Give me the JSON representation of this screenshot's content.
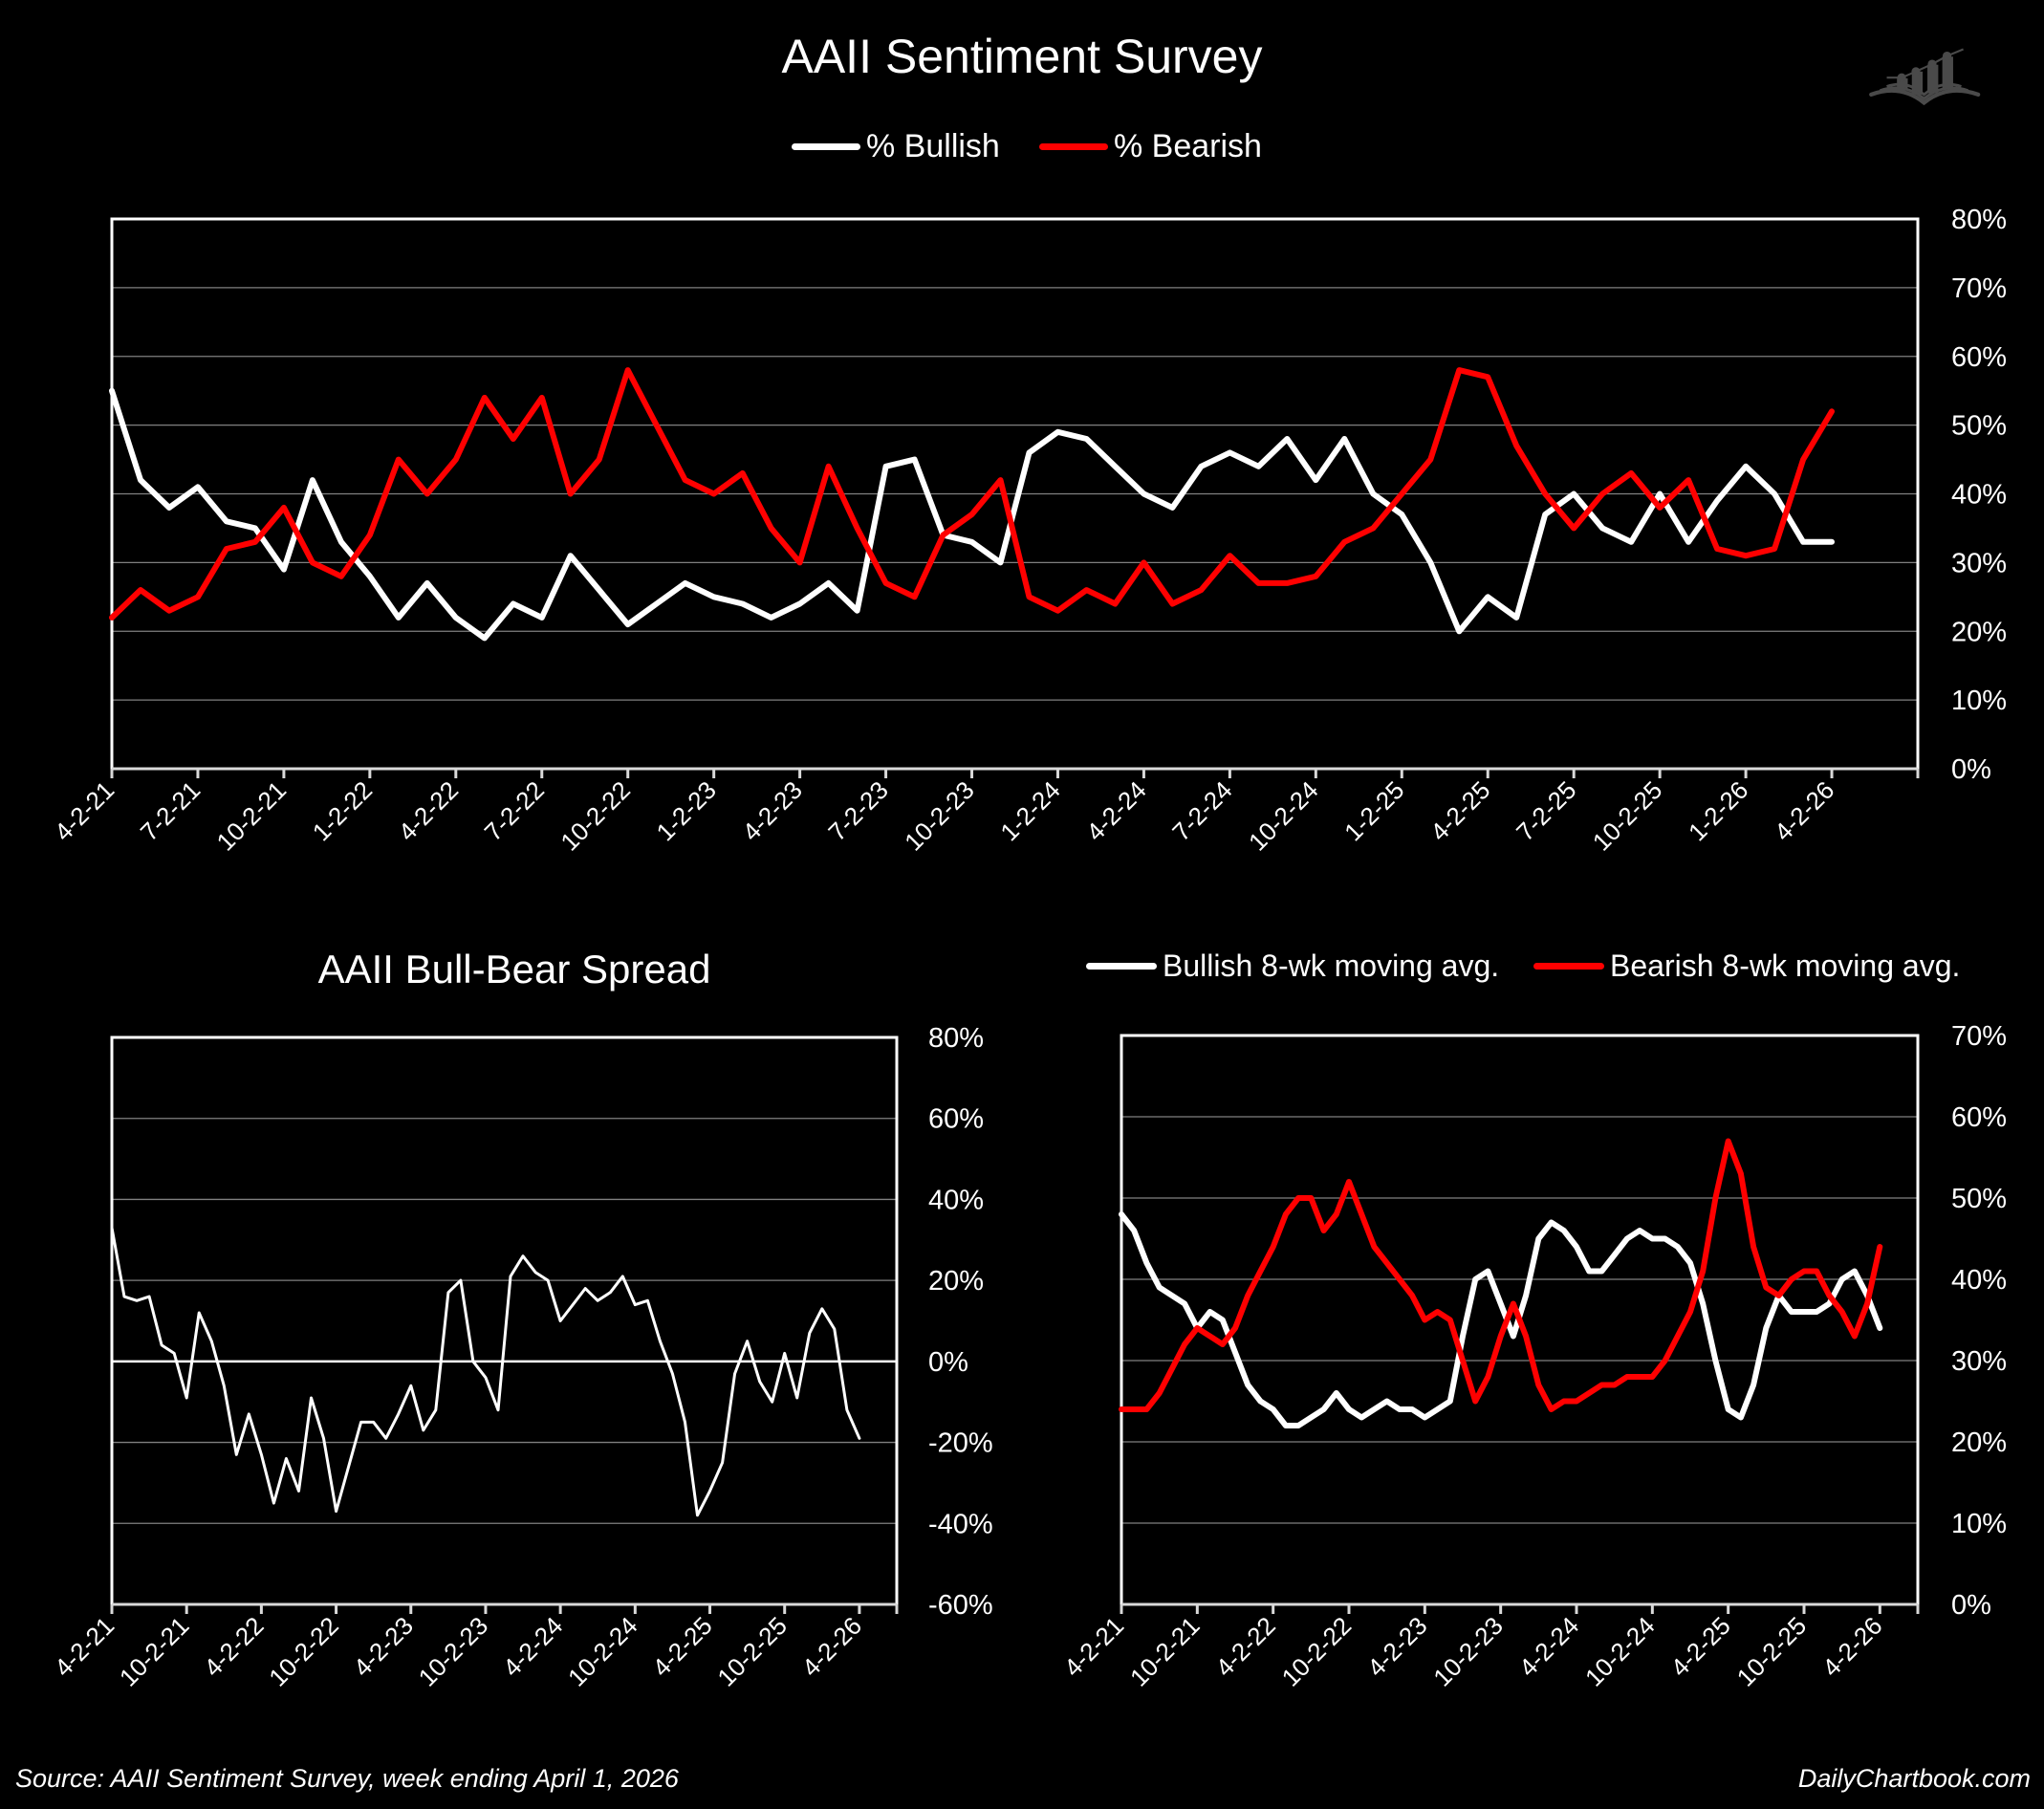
{
  "colors": {
    "background": "#000000",
    "bullish": "#ffffff",
    "bearish": "#ff0000",
    "grid": "#808080",
    "logo": "#4a4a4a"
  },
  "logo": {
    "icon": "book-with-rising-bar-chart-icon"
  },
  "footer": {
    "source": "Source: AAII Sentiment Survey, week ending April 1, 2026",
    "brand": "DailyChartbook.com"
  },
  "chart_data": [
    {
      "type": "line",
      "title": "AAII Sentiment Survey",
      "legend_position": "top",
      "grid": true,
      "y_axis_side": "right",
      "ylim": [
        0,
        80
      ],
      "y_tick_labels": [
        "0%",
        "10%",
        "20%",
        "30%",
        "40%",
        "50%",
        "60%",
        "70%",
        "80%"
      ],
      "x_tick_labels": [
        "4-2-21",
        "7-2-21",
        "10-2-21",
        "1-2-22",
        "4-2-22",
        "7-2-22",
        "10-2-22",
        "1-2-23",
        "4-2-23",
        "7-2-23",
        "10-2-23",
        "1-2-24",
        "4-2-24",
        "7-2-24",
        "10-2-24",
        "1-2-25",
        "4-2-25",
        "7-2-25",
        "10-2-25",
        "1-2-26",
        "4-2-26"
      ],
      "x": [
        "2021-04",
        "2021-05",
        "2021-06",
        "2021-07",
        "2021-08",
        "2021-09",
        "2021-10",
        "2021-11",
        "2021-12",
        "2022-01",
        "2022-02",
        "2022-03",
        "2022-04",
        "2022-05",
        "2022-06",
        "2022-07",
        "2022-08",
        "2022-09",
        "2022-10",
        "2022-11",
        "2022-12",
        "2023-01",
        "2023-02",
        "2023-03",
        "2023-04",
        "2023-05",
        "2023-06",
        "2023-07",
        "2023-08",
        "2023-09",
        "2023-10",
        "2023-11",
        "2023-12",
        "2024-01",
        "2024-02",
        "2024-03",
        "2024-04",
        "2024-05",
        "2024-06",
        "2024-07",
        "2024-08",
        "2024-09",
        "2024-10",
        "2024-11",
        "2024-12",
        "2025-01",
        "2025-02",
        "2025-03",
        "2025-04",
        "2025-05",
        "2025-06",
        "2025-07",
        "2025-08",
        "2025-09",
        "2025-10",
        "2025-11",
        "2025-12",
        "2026-01",
        "2026-02",
        "2026-03",
        "2026-04"
      ],
      "series": [
        {
          "name": "% Bullish",
          "color": "#ffffff",
          "values": [
            55,
            42,
            38,
            41,
            36,
            35,
            29,
            42,
            33,
            28,
            22,
            27,
            22,
            19,
            24,
            22,
            31,
            26,
            21,
            24,
            27,
            25,
            24,
            22,
            24,
            27,
            23,
            44,
            45,
            34,
            33,
            30,
            46,
            49,
            48,
            44,
            40,
            38,
            44,
            46,
            44,
            48,
            42,
            48,
            40,
            37,
            30,
            20,
            25,
            22,
            37,
            40,
            35,
            33,
            40,
            33,
            39,
            44,
            40,
            33,
            33
          ]
        },
        {
          "name": "% Bearish",
          "color": "#ff0000",
          "values": [
            22,
            26,
            23,
            25,
            32,
            33,
            38,
            30,
            28,
            34,
            45,
            40,
            45,
            54,
            48,
            54,
            40,
            45,
            58,
            50,
            42,
            40,
            43,
            35,
            30,
            44,
            35,
            27,
            25,
            34,
            37,
            42,
            25,
            23,
            26,
            24,
            30,
            24,
            26,
            31,
            27,
            27,
            28,
            33,
            35,
            40,
            45,
            58,
            57,
            47,
            40,
            35,
            40,
            43,
            38,
            42,
            32,
            31,
            32,
            45,
            52
          ]
        }
      ]
    },
    {
      "type": "line",
      "title": "AAII Bull-Bear Spread",
      "grid": true,
      "y_axis_side": "right",
      "ylim": [
        -60,
        80
      ],
      "y_tick_labels": [
        "-60%",
        "-40%",
        "-20%",
        "0%",
        "20%",
        "40%",
        "60%",
        "80%"
      ],
      "x_tick_labels": [
        "4-2-21",
        "10-2-21",
        "4-2-22",
        "10-2-22",
        "4-2-23",
        "10-2-23",
        "4-2-24",
        "10-2-24",
        "4-2-25",
        "10-2-25",
        "4-2-26"
      ],
      "x": [
        "2021-04",
        "2021-05",
        "2021-06",
        "2021-07",
        "2021-08",
        "2021-09",
        "2021-10",
        "2021-11",
        "2021-12",
        "2022-01",
        "2022-02",
        "2022-03",
        "2022-04",
        "2022-05",
        "2022-06",
        "2022-07",
        "2022-08",
        "2022-09",
        "2022-10",
        "2022-11",
        "2022-12",
        "2023-01",
        "2023-02",
        "2023-03",
        "2023-04",
        "2023-05",
        "2023-06",
        "2023-07",
        "2023-08",
        "2023-09",
        "2023-10",
        "2023-11",
        "2023-12",
        "2024-01",
        "2024-02",
        "2024-03",
        "2024-04",
        "2024-05",
        "2024-06",
        "2024-07",
        "2024-08",
        "2024-09",
        "2024-10",
        "2024-11",
        "2024-12",
        "2025-01",
        "2025-02",
        "2025-03",
        "2025-04",
        "2025-05",
        "2025-06",
        "2025-07",
        "2025-08",
        "2025-09",
        "2025-10",
        "2025-11",
        "2025-12",
        "2026-01",
        "2026-02",
        "2026-03",
        "2026-04"
      ],
      "series": [
        {
          "color": "#ffffff",
          "values": [
            33,
            16,
            15,
            16,
            4,
            2,
            -9,
            12,
            5,
            -6,
            -23,
            -13,
            -23,
            -35,
            -24,
            -32,
            -9,
            -19,
            -37,
            -26,
            -15,
            -15,
            -19,
            -13,
            -6,
            -17,
            -12,
            17,
            20,
            0,
            -4,
            -12,
            21,
            26,
            22,
            20,
            10,
            14,
            18,
            15,
            17,
            21,
            14,
            15,
            5,
            -3,
            -15,
            -38,
            -32,
            -25,
            -3,
            5,
            -5,
            -10,
            2,
            -9,
            7,
            13,
            8,
            -12,
            -19
          ]
        }
      ]
    },
    {
      "type": "line",
      "legend_position": "top",
      "grid": true,
      "y_axis_side": "right",
      "ylim": [
        0,
        70
      ],
      "y_tick_labels": [
        "0%",
        "10%",
        "20%",
        "30%",
        "40%",
        "50%",
        "60%",
        "70%"
      ],
      "x_tick_labels": [
        "4-2-21",
        "10-2-21",
        "4-2-22",
        "10-2-22",
        "4-2-23",
        "10-2-23",
        "4-2-24",
        "10-2-24",
        "4-2-25",
        "10-2-25",
        "4-2-26"
      ],
      "x": [
        "2021-04",
        "2021-05",
        "2021-06",
        "2021-07",
        "2021-08",
        "2021-09",
        "2021-10",
        "2021-11",
        "2021-12",
        "2022-01",
        "2022-02",
        "2022-03",
        "2022-04",
        "2022-05",
        "2022-06",
        "2022-07",
        "2022-08",
        "2022-09",
        "2022-10",
        "2022-11",
        "2022-12",
        "2023-01",
        "2023-02",
        "2023-03",
        "2023-04",
        "2023-05",
        "2023-06",
        "2023-07",
        "2023-08",
        "2023-09",
        "2023-10",
        "2023-11",
        "2023-12",
        "2024-01",
        "2024-02",
        "2024-03",
        "2024-04",
        "2024-05",
        "2024-06",
        "2024-07",
        "2024-08",
        "2024-09",
        "2024-10",
        "2024-11",
        "2024-12",
        "2025-01",
        "2025-02",
        "2025-03",
        "2025-04",
        "2025-05",
        "2025-06",
        "2025-07",
        "2025-08",
        "2025-09",
        "2025-10",
        "2025-11",
        "2025-12",
        "2026-01",
        "2026-02",
        "2026-03",
        "2026-04"
      ],
      "series": [
        {
          "name": "Bullish 8-wk moving avg.",
          "color": "#ffffff",
          "values": [
            48,
            46,
            42,
            39,
            38,
            37,
            34,
            36,
            35,
            31,
            27,
            25,
            24,
            22,
            22,
            23,
            24,
            26,
            24,
            23,
            24,
            25,
            24,
            24,
            23,
            24,
            25,
            33,
            40,
            41,
            37,
            33,
            38,
            45,
            47,
            46,
            44,
            41,
            41,
            43,
            45,
            46,
            45,
            45,
            44,
            42,
            37,
            30,
            24,
            23,
            27,
            34,
            38,
            36,
            36,
            36,
            37,
            40,
            41,
            38,
            34
          ]
        },
        {
          "name": "Bearish 8-wk moving avg.",
          "color": "#ff0000",
          "values": [
            24,
            24,
            24,
            26,
            29,
            32,
            34,
            33,
            32,
            34,
            38,
            41,
            44,
            48,
            50,
            50,
            46,
            48,
            52,
            48,
            44,
            42,
            40,
            38,
            35,
            36,
            35,
            30,
            25,
            28,
            33,
            37,
            33,
            27,
            24,
            25,
            25,
            26,
            27,
            27,
            28,
            28,
            28,
            30,
            33,
            36,
            41,
            50,
            57,
            53,
            44,
            39,
            38,
            40,
            41,
            41,
            38,
            36,
            33,
            37,
            44
          ]
        }
      ]
    }
  ]
}
